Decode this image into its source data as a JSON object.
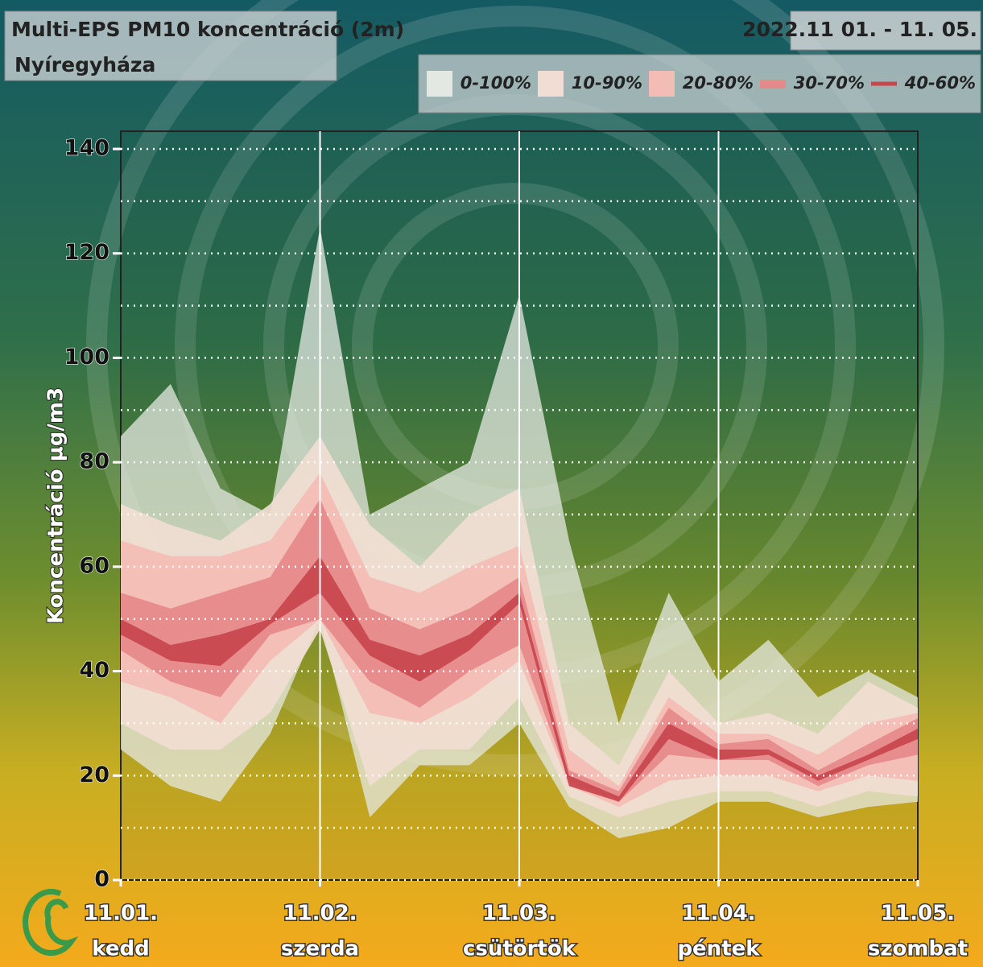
{
  "chart_data": {
    "type": "fan",
    "title": "Multi-EPS PM10 koncentráció (2m)",
    "subtitle": "Nyíregyháza",
    "date_range": "2022.11 01. - 11. 05.",
    "ylabel": "Koncentráció µg/m3",
    "x": [
      0,
      0.25,
      0.5,
      0.75,
      1,
      1.25,
      1.5,
      1.75,
      2,
      2.25,
      2.5,
      2.75,
      3,
      3.25,
      3.5,
      3.75,
      4
    ],
    "xlim": [
      0,
      4
    ],
    "xticks": [
      {
        "value": 0,
        "label": "11.01."
      },
      {
        "value": 1,
        "label": "11.02."
      },
      {
        "value": 2,
        "label": "11.03."
      },
      {
        "value": 3,
        "label": "11.04."
      },
      {
        "value": 4,
        "label": "11.05."
      }
    ],
    "xtick_days": [
      "kedd",
      "szerda",
      "csütörtök",
      "péntek",
      "szombat"
    ],
    "ylim": [
      0,
      140
    ],
    "yticks": [
      0,
      20,
      40,
      60,
      80,
      100,
      120,
      140
    ],
    "yminorticks": [
      10,
      30,
      50,
      70,
      90,
      110,
      130
    ],
    "grid": true,
    "series": [
      {
        "name": "0-100%",
        "color": "#e4e8e2",
        "lower": [
          25,
          18,
          15,
          28,
          50,
          12,
          22,
          22,
          30,
          14,
          8,
          10,
          15,
          15,
          12,
          14,
          15
        ],
        "upper": [
          85,
          95,
          75,
          70,
          125,
          70,
          75,
          80,
          112,
          65,
          30,
          55,
          38,
          46,
          35,
          40,
          35
        ]
      },
      {
        "name": "10-90%",
        "color": "#f1ddd3",
        "lower": [
          30,
          25,
          25,
          32,
          48,
          18,
          25,
          25,
          35,
          16,
          12,
          15,
          17,
          17,
          14,
          17,
          16
        ],
        "upper": [
          72,
          68,
          65,
          72,
          85,
          68,
          60,
          70,
          75,
          30,
          22,
          40,
          30,
          32,
          28,
          38,
          33
        ]
      },
      {
        "name": "20-80%",
        "color": "#f3bcb4",
        "lower": [
          38,
          35,
          30,
          42,
          50,
          32,
          30,
          35,
          42,
          18,
          14,
          19,
          20,
          20,
          17,
          20,
          19
        ],
        "upper": [
          65,
          62,
          62,
          65,
          78,
          58,
          55,
          60,
          64,
          25,
          18,
          35,
          28,
          28,
          24,
          30,
          32
        ]
      },
      {
        "name": "30-70%",
        "color": "#e6898a",
        "lower": [
          44,
          38,
          35,
          47,
          50,
          38,
          33,
          40,
          45,
          19,
          15,
          24,
          23,
          23,
          18,
          22,
          24
        ],
        "upper": [
          55,
          52,
          55,
          58,
          73,
          52,
          48,
          52,
          58,
          21,
          17,
          33,
          26,
          27,
          21,
          26,
          31
        ]
      },
      {
        "name": "40-60%",
        "color": "#c9454d",
        "lower": [
          47,
          42,
          41,
          49,
          55,
          43,
          38,
          44,
          53,
          18,
          15,
          27,
          23,
          24,
          19,
          23,
          27
        ],
        "upper": [
          50,
          45,
          47,
          50,
          62,
          46,
          43,
          47,
          55,
          20,
          16,
          30,
          25,
          25,
          20,
          24,
          29
        ]
      }
    ]
  }
}
